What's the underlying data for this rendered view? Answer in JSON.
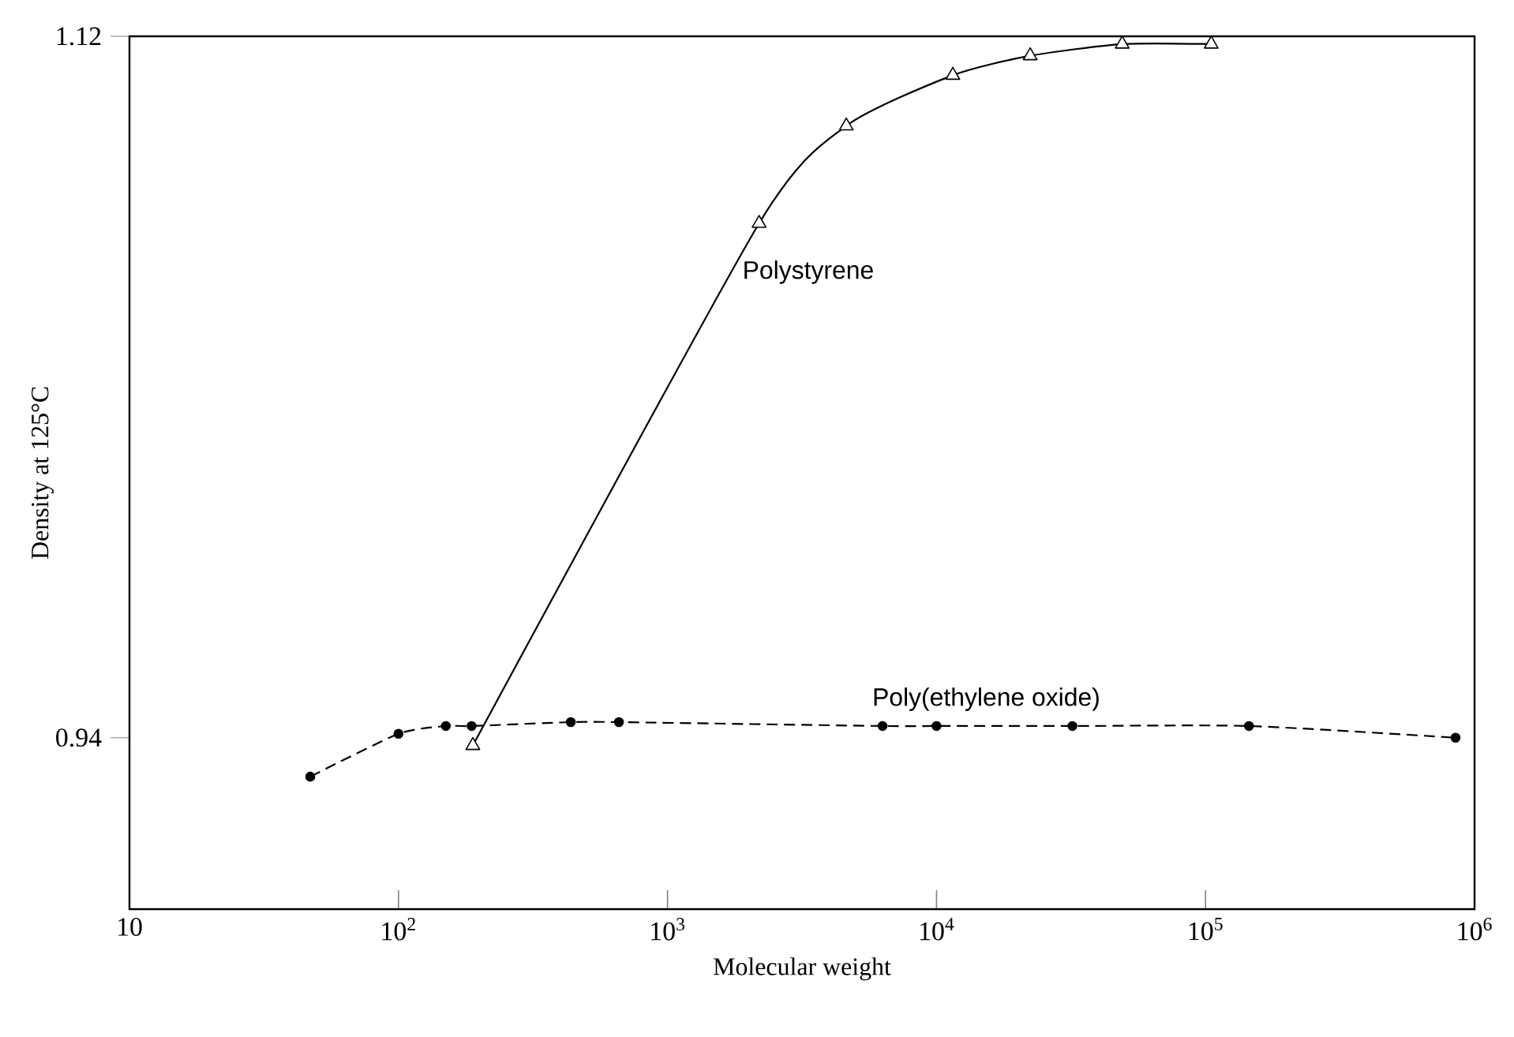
{
  "chart_data": {
    "type": "line",
    "xlabel": "Molecular weight",
    "ylabel": "Density at 125°C",
    "log": "x",
    "xlim": [
      10,
      1000000
    ],
    "ylim": [
      0.896,
      1.12
    ],
    "xticks": [
      10,
      {
        "value": 100,
        "label": "10$^{2}$"
      },
      {
        "value": 1000,
        "label": "10$^{3}$"
      },
      {
        "value": 10000,
        "label": "10$^{4}$"
      },
      {
        "value": 100000,
        "label": "10$^{5}$"
      },
      {
        "value": 1000000,
        "label": "10$^{6}$"
      }
    ],
    "yticks": [
      0.94,
      1.12
    ],
    "series": [
      {
        "name": "Polystyrene",
        "color": "#000000",
        "marker": "triangle",
        "line_style": "solid",
        "x": [
          189,
          2190,
          4620,
          11500,
          22300,
          49000,
          105000
        ],
        "values": [
          0.938,
          1.072,
          1.097,
          1.11,
          1.115,
          1.118,
          1.118
        ]
      },
      {
        "name": "Poly(ethylene oxide)",
        "color": "#000000",
        "marker": "circle",
        "line_style": "dashed",
        "x": [
          47,
          100,
          150,
          187,
          437,
          660,
          6300,
          10000,
          32000,
          145000,
          850000
        ],
        "values": [
          0.93,
          0.941,
          0.943,
          0.943,
          0.944,
          0.944,
          0.943,
          0.943,
          0.943,
          0.943,
          0.94
        ]
      }
    ]
  }
}
